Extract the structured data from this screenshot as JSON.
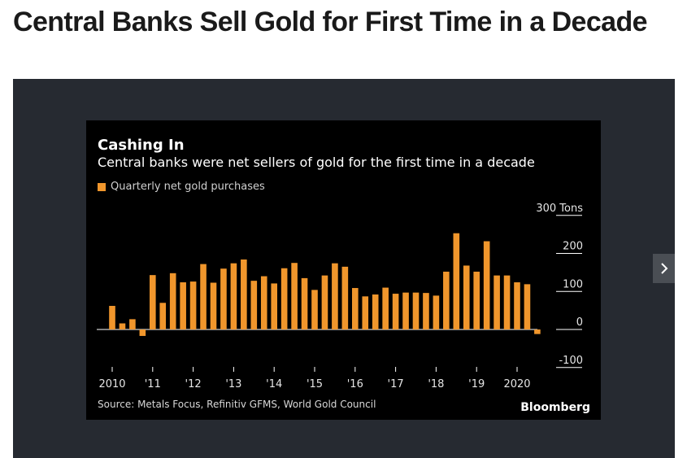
{
  "page": {
    "headline": "Central Banks Sell Gold for First Time in a Decade"
  },
  "chart": {
    "title": "Cashing In",
    "subtitle": "Central banks were net sellers of gold for the first time in a decade",
    "legend_label": "Quarterly net gold purchases",
    "source": "Source: Metals Focus, Refinitiv GFMS, World Gold Council",
    "brand": "Bloomberg"
  },
  "colors": {
    "bar": "#f0962c",
    "chart_background": "#000000",
    "frame_background": "#262a31",
    "axis": "#ffffff"
  },
  "icons": {
    "next": "chevron-right-icon"
  },
  "chart_data": {
    "type": "bar",
    "title": "Cashing In",
    "subtitle": "Central banks were net sellers of gold for the first time in a decade",
    "xlabel": "",
    "ylabel": "",
    "y_unit": "Tons",
    "ylim": [
      -100,
      300
    ],
    "y_ticks": [
      {
        "value": 300,
        "label": "300 Tons"
      },
      {
        "value": 200,
        "label": "200"
      },
      {
        "value": 100,
        "label": "100"
      },
      {
        "value": 0,
        "label": "0"
      },
      {
        "value": -100,
        "label": "-100"
      }
    ],
    "x_tick_labels": [
      "2010",
      "'11",
      "'12",
      "'13",
      "'14",
      "'15",
      "'16",
      "'17",
      "'18",
      "'19",
      "2020"
    ],
    "series": [
      {
        "name": "Quarterly net gold purchases",
        "categories": [
          "2010 Q1",
          "2010 Q2",
          "2010 Q3",
          "2010 Q4",
          "2011 Q1",
          "2011 Q2",
          "2011 Q3",
          "2011 Q4",
          "2012 Q1",
          "2012 Q2",
          "2012 Q3",
          "2012 Q4",
          "2013 Q1",
          "2013 Q2",
          "2013 Q3",
          "2013 Q4",
          "2014 Q1",
          "2014 Q2",
          "2014 Q3",
          "2014 Q4",
          "2015 Q1",
          "2015 Q2",
          "2015 Q3",
          "2015 Q4",
          "2016 Q1",
          "2016 Q2",
          "2016 Q3",
          "2016 Q4",
          "2017 Q1",
          "2017 Q2",
          "2017 Q3",
          "2017 Q4",
          "2018 Q1",
          "2018 Q2",
          "2018 Q3",
          "2018 Q4",
          "2019 Q1",
          "2019 Q2",
          "2019 Q3",
          "2019 Q4",
          "2020 Q1",
          "2020 Q2",
          "2020 Q3"
        ],
        "values": [
          62,
          16,
          27,
          -17,
          143,
          70,
          148,
          124,
          126,
          172,
          123,
          160,
          174,
          184,
          128,
          140,
          121,
          161,
          175,
          135,
          104,
          142,
          174,
          165,
          109,
          87,
          92,
          110,
          94,
          97,
          97,
          96,
          89,
          152,
          253,
          168,
          152,
          232,
          142,
          142,
          124,
          119,
          -12
        ]
      }
    ],
    "grid": false,
    "legend_placement": "top-left"
  }
}
